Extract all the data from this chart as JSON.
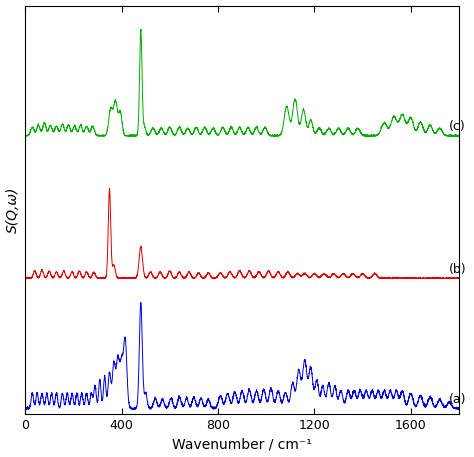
{
  "title": "",
  "xlabel": "Wavenumber / cm⁻¹",
  "ylabel": "S(Q,ω)",
  "xlim": [
    0,
    1800
  ],
  "xticks": [
    0,
    400,
    800,
    1200,
    1600
  ],
  "colors": {
    "a": "#0000dd",
    "b": "#dd0000",
    "c": "#00aa00"
  },
  "labels": {
    "a": "(a)",
    "b": "(b)",
    "c": "(c)"
  },
  "offsets": {
    "a": 0.0,
    "b": 0.55,
    "c": 1.15
  },
  "background": "#ffffff",
  "linewidth": 0.7
}
